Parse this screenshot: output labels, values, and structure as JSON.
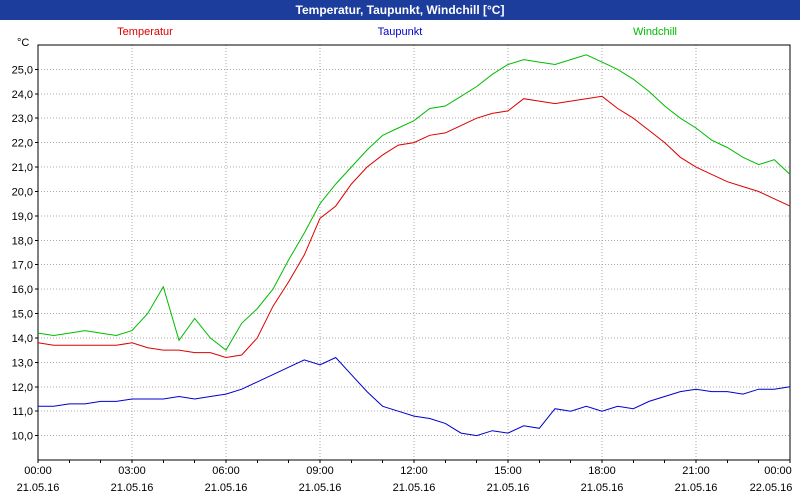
{
  "window": {
    "title": "Temperatur, Taupunkt, Windchill [°C]"
  },
  "colors": {
    "titlebar_bg": "#1c3d9c",
    "grid": "#a8a8a8",
    "axis": "#000000"
  },
  "chart_data": {
    "type": "line",
    "title": "Temperatur, Taupunkt, Windchill [°C]",
    "y_unit_label": "°C",
    "ylim": [
      9.0,
      26.0
    ],
    "x_hours_range": [
      0,
      24
    ],
    "x_step_hours": 0.5,
    "grid": true,
    "legend_position": "top",
    "y_ticks": {
      "values": [
        10,
        11,
        12,
        13,
        14,
        15,
        16,
        17,
        18,
        19,
        20,
        21,
        22,
        23,
        24,
        25
      ],
      "labels": [
        "10,0",
        "11,0",
        "12,0",
        "13,0",
        "14,0",
        "15,0",
        "16,0",
        "17,0",
        "18,0",
        "19,0",
        "20,0",
        "21,0",
        "22,0",
        "23,0",
        "24,0",
        "25,0"
      ]
    },
    "x_ticks": {
      "hours": [
        0,
        3,
        6,
        9,
        12,
        15,
        18,
        21,
        24
      ],
      "time_labels": [
        "00:00",
        "03:00",
        "06:00",
        "09:00",
        "12:00",
        "15:00",
        "18:00",
        "21:00",
        "00:00"
      ],
      "date_labels": [
        "21.05.16",
        "21.05.16",
        "21.05.16",
        "21.05.16",
        "21.05.16",
        "21.05.16",
        "21.05.16",
        "21.05.16",
        "22.05.16"
      ]
    },
    "series": [
      {
        "name": "Temperatur",
        "color": "#dd0000",
        "values": [
          13.8,
          13.7,
          13.7,
          13.7,
          13.7,
          13.7,
          13.8,
          13.6,
          13.5,
          13.5,
          13.4,
          13.4,
          13.2,
          13.3,
          14.0,
          15.3,
          16.3,
          17.4,
          18.9,
          19.4,
          20.3,
          21.0,
          21.5,
          21.9,
          22.0,
          22.3,
          22.4,
          22.7,
          23.0,
          23.2,
          23.3,
          23.8,
          23.7,
          23.6,
          23.7,
          23.8,
          23.9,
          23.4,
          23.0,
          22.5,
          22.0,
          21.4,
          21.0,
          20.7,
          20.4,
          20.2,
          20.0,
          19.7,
          19.4
        ]
      },
      {
        "name": "Taupunkt",
        "color": "#0000cc",
        "values": [
          11.2,
          11.2,
          11.3,
          11.3,
          11.4,
          11.4,
          11.5,
          11.5,
          11.5,
          11.6,
          11.5,
          11.6,
          11.7,
          11.9,
          12.2,
          12.5,
          12.8,
          13.1,
          12.9,
          13.2,
          12.5,
          11.8,
          11.2,
          11.0,
          10.8,
          10.7,
          10.5,
          10.1,
          10.0,
          10.2,
          10.1,
          10.4,
          10.3,
          11.1,
          11.0,
          11.2,
          11.0,
          11.2,
          11.1,
          11.4,
          11.6,
          11.8,
          11.9,
          11.8,
          11.8,
          11.7,
          11.9,
          11.9,
          12.0
        ]
      },
      {
        "name": "Windchill",
        "color": "#00bb00",
        "values": [
          14.2,
          14.1,
          14.2,
          14.3,
          14.2,
          14.1,
          14.3,
          15.0,
          16.1,
          13.9,
          14.8,
          14.0,
          13.5,
          14.6,
          15.2,
          16.0,
          17.2,
          18.3,
          19.5,
          20.3,
          21.0,
          21.7,
          22.3,
          22.6,
          22.9,
          23.4,
          23.5,
          23.9,
          24.3,
          24.8,
          25.2,
          25.4,
          25.3,
          25.2,
          25.4,
          25.6,
          25.3,
          25.0,
          24.6,
          24.1,
          23.5,
          23.0,
          22.6,
          22.1,
          21.8,
          21.4,
          21.1,
          21.3,
          20.7
        ]
      }
    ]
  }
}
